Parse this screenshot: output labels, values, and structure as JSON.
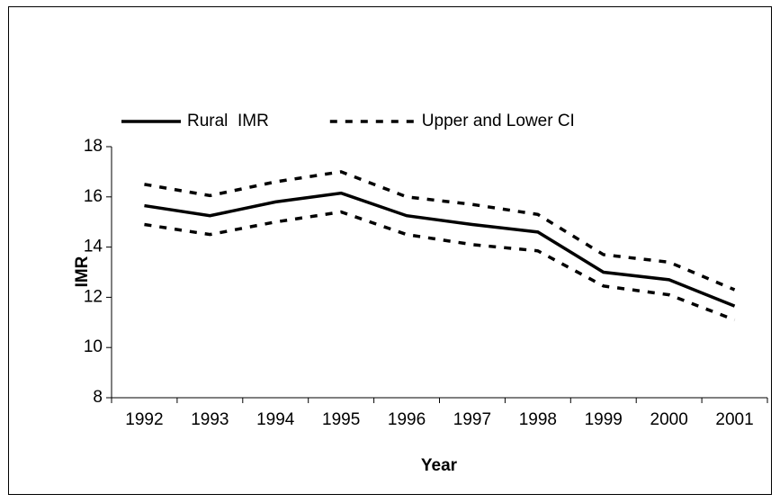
{
  "chart_data": {
    "type": "line",
    "categories": [
      "1992",
      "1993",
      "1994",
      "1995",
      "1996",
      "1997",
      "1998",
      "1999",
      "2000",
      "2001"
    ],
    "series": [
      {
        "name": "Rural  IMR",
        "color": "#000000",
        "dash": false,
        "values": [
          15.65,
          15.25,
          15.8,
          16.15,
          15.25,
          14.9,
          14.6,
          13.0,
          12.7,
          11.65
        ]
      },
      {
        "name": "Upper and Lower CI",
        "color": "#000000",
        "dash": true,
        "values": [
          16.5,
          16.05,
          16.6,
          17.0,
          16.0,
          15.7,
          15.3,
          13.7,
          13.4,
          12.3
        ]
      },
      {
        "color": "#000000",
        "dash": true,
        "values": [
          14.9,
          14.5,
          15.0,
          15.4,
          14.5,
          14.1,
          13.85,
          12.45,
          12.1,
          11.1
        ]
      }
    ],
    "ylabel": "IMR",
    "xlabel": "Year",
    "ylim": [
      8,
      18
    ],
    "yticks": [
      8,
      10,
      12,
      14,
      16,
      18
    ],
    "grid": false
  }
}
